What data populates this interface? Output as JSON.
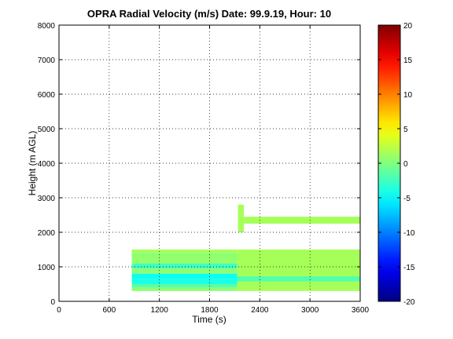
{
  "chart_data": {
    "type": "heatmap",
    "title": "OPRA Radial Velocity (m/s)  Date: 99.9.19, Hour: 10",
    "xlabel": "Time (s)",
    "ylabel": "Height (m AGL)",
    "xlim": [
      0,
      3600
    ],
    "ylim": [
      0,
      8000
    ],
    "xticks": [
      "0",
      "600",
      "1200",
      "1800",
      "2400",
      "3000",
      "3600"
    ],
    "yticks": [
      "0",
      "1000",
      "2000",
      "3000",
      "4000",
      "5000",
      "6000",
      "7000",
      "8000"
    ],
    "grid": true,
    "colormap": "jet",
    "colorbar": {
      "range": [
        -20,
        20
      ],
      "ticks": [
        "20",
        "15",
        "10",
        "5",
        "0",
        "-5",
        "-10",
        "-15",
        "-20"
      ]
    },
    "bands": [
      {
        "x": [
          870,
          2130
        ],
        "y": [
          1400,
          1500
        ],
        "value": 1.5
      },
      {
        "x": [
          870,
          2130
        ],
        "y": [
          1250,
          1400
        ],
        "value": 0.5
      },
      {
        "x": [
          870,
          2130
        ],
        "y": [
          1100,
          1250
        ],
        "value": 1.0
      },
      {
        "x": [
          870,
          2130
        ],
        "y": [
          950,
          1100
        ],
        "value": -2.5
      },
      {
        "x": [
          870,
          2130
        ],
        "y": [
          800,
          950
        ],
        "value": 0.5
      },
      {
        "x": [
          870,
          2130
        ],
        "y": [
          650,
          800
        ],
        "value": -4.5
      },
      {
        "x": [
          870,
          2130
        ],
        "y": [
          500,
          650
        ],
        "value": -4.0
      },
      {
        "x": [
          870,
          2130
        ],
        "y": [
          400,
          500
        ],
        "value": -1.5
      },
      {
        "x": [
          870,
          2130
        ],
        "y": [
          300,
          400
        ],
        "value": 0.5
      },
      {
        "x": [
          2130,
          3600
        ],
        "y": [
          300,
          1500
        ],
        "value": 1.5
      },
      {
        "x": [
          2130,
          3600
        ],
        "y": [
          580,
          720
        ],
        "value": -2.0
      },
      {
        "x": [
          2210,
          3600
        ],
        "y": [
          2250,
          2450
        ],
        "value": 1.5
      },
      {
        "x": [
          2140,
          2210
        ],
        "y": [
          2000,
          2800
        ],
        "value": 1.5
      }
    ]
  }
}
